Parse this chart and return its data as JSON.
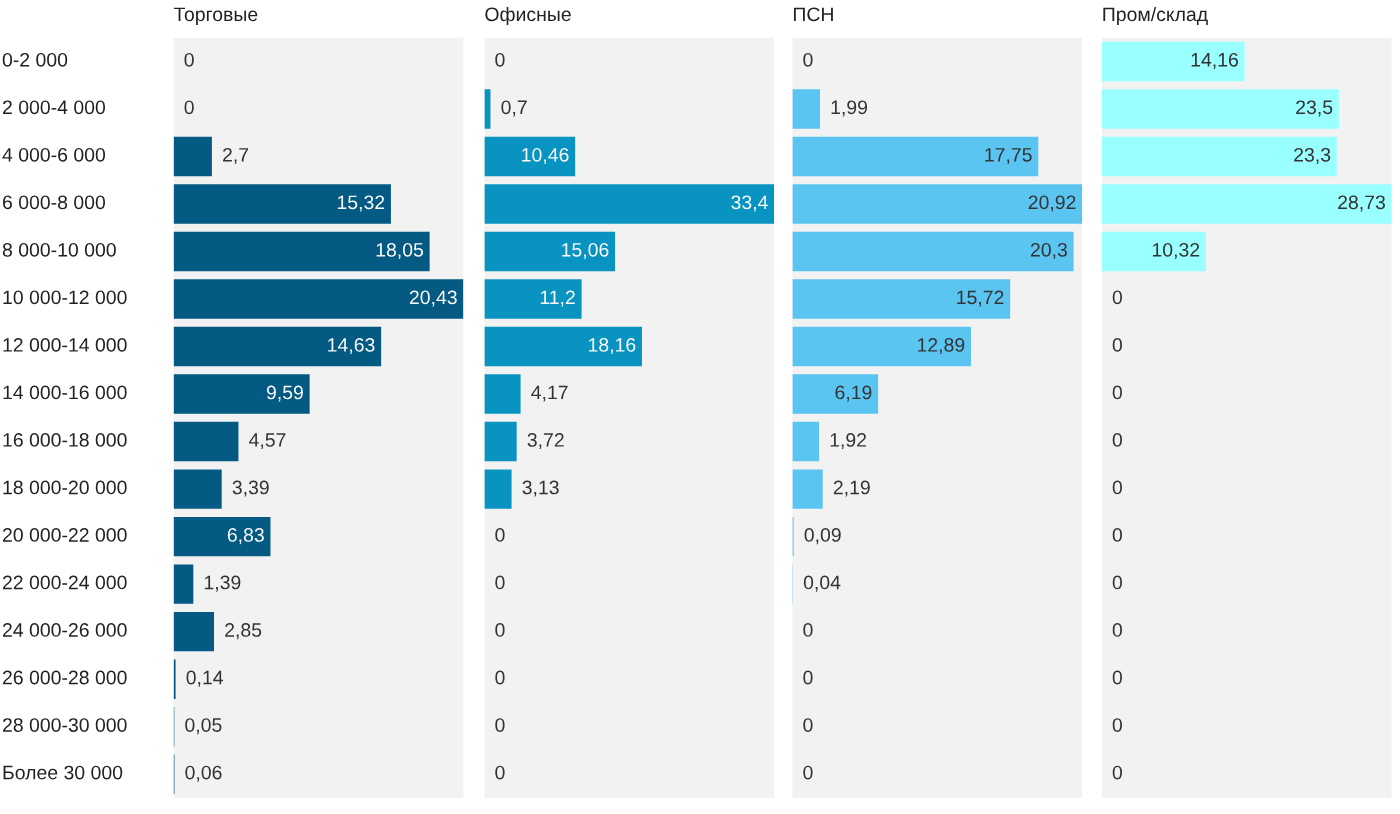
{
  "chart_data": [
    {
      "type": "bar",
      "orientation": "horizontal",
      "title": "Торговые",
      "categories": [
        "0-2 000",
        "2 000-4 000",
        "4 000-6 000",
        "6 000-8 000",
        "8 000-10 000",
        "10 000-12 000",
        "12 000-14 000",
        "14 000-16 000",
        "16 000-18 000",
        "18 000-20 000",
        "20 000-22 000",
        "22 000-24 000",
        "24 000-26 000",
        "26 000-28 000",
        "28 000-30 000",
        "Более 30 000"
      ],
      "values": [
        0,
        0,
        2.7,
        15.32,
        18.05,
        20.43,
        14.63,
        9.59,
        4.57,
        3.39,
        6.83,
        1.39,
        2.85,
        0.14,
        0.05,
        0.06
      ],
      "value_labels": [
        "0",
        "0",
        "2,7",
        "15,32",
        "18,05",
        "20,43",
        "14,63",
        "9,59",
        "4,57",
        "3,39",
        "6,83",
        "1,39",
        "2,85",
        "0,14",
        "0,05",
        "0,06"
      ],
      "color": "#045a82",
      "tick_labels": "y"
    },
    {
      "type": "bar",
      "orientation": "horizontal",
      "title": "Офисные",
      "values": [
        0,
        0.7,
        10.46,
        33.4,
        15.06,
        11.2,
        18.16,
        4.17,
        3.72,
        3.13,
        0,
        0,
        0,
        0,
        0,
        0
      ],
      "value_labels": [
        "0",
        "0,7",
        "10,46",
        "33,4",
        "15,06",
        "11,2",
        "18,16",
        "4,17",
        "3,72",
        "3,13",
        "0",
        "0",
        "0",
        "0",
        "0",
        "0"
      ],
      "color": "#0893c0",
      "tick_labels": false
    },
    {
      "type": "bar",
      "orientation": "horizontal",
      "title": "ПСН",
      "values": [
        0,
        1.99,
        17.75,
        20.92,
        20.3,
        15.72,
        12.89,
        6.19,
        1.92,
        2.19,
        0.09,
        0.04,
        0,
        0,
        0,
        0
      ],
      "value_labels": [
        "0",
        "1,99",
        "17,75",
        "20,92",
        "20,3",
        "15,72",
        "12,89",
        "6,19",
        "1,92",
        "2,19",
        "0,09",
        "0,04",
        "0",
        "0",
        "0",
        "0"
      ],
      "color": "#5bc5f2",
      "tick_labels": false
    },
    {
      "type": "bar",
      "orientation": "horizontal",
      "title": "Пром/склад",
      "values": [
        14.16,
        23.5,
        23.3,
        28.73,
        10.32,
        0,
        0,
        0,
        0,
        0,
        0,
        0,
        0,
        0,
        0,
        0
      ],
      "value_labels": [
        "14,16",
        "23,5",
        "23,3",
        "28,73",
        "10,32",
        "0",
        "0",
        "0",
        "0",
        "0",
        "0",
        "0",
        "0",
        "0",
        "0",
        "0"
      ],
      "color": "#99ffff",
      "tick_labels": false
    }
  ]
}
